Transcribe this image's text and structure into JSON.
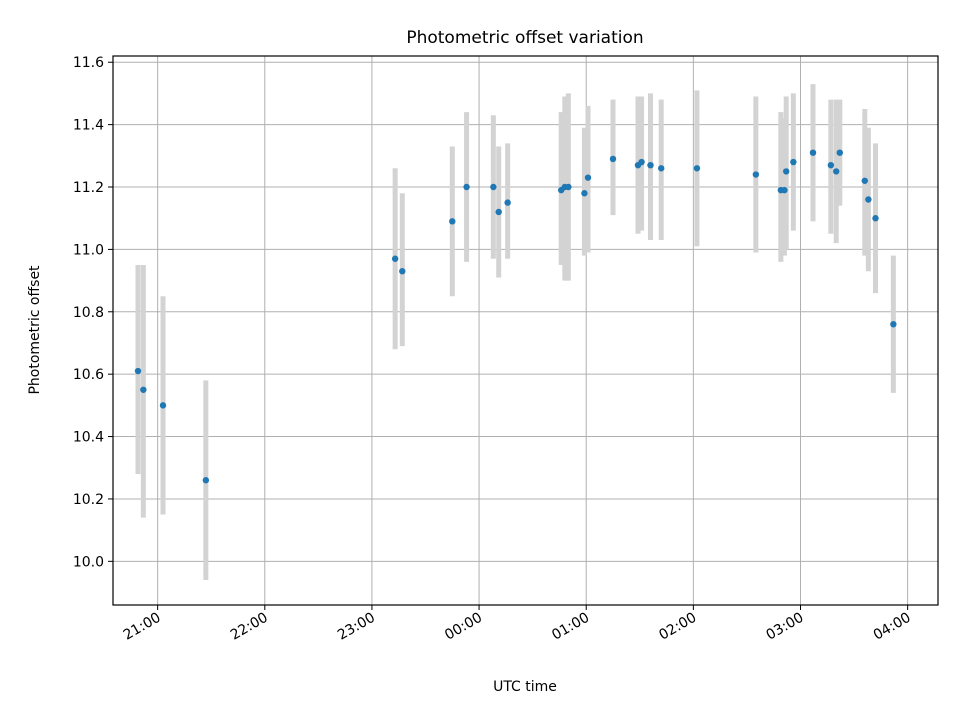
{
  "chart_data": {
    "type": "scatter",
    "title": "Photometric offset variation",
    "xlabel": "UTC time",
    "ylabel": "Photometric offset",
    "x_axis_kind": "time",
    "x_ticks": [
      "21:00",
      "22:00",
      "23:00",
      "00:00",
      "01:00",
      "02:00",
      "03:00",
      "04:00"
    ],
    "y_ticks": [
      "10.0",
      "10.2",
      "10.4",
      "10.6",
      "10.8",
      "11.0",
      "11.2",
      "11.4",
      "11.6"
    ],
    "xlim": [
      "20:35",
      "04:17"
    ],
    "ylim": [
      9.86,
      11.62
    ],
    "grid": true,
    "point_color": "#1f77b4",
    "errorbar_color": "#d3d3d3",
    "points": [
      {
        "x": "20:49",
        "y": 10.61,
        "ylo": 10.28,
        "yhi": 10.95
      },
      {
        "x": "20:52",
        "y": 10.55,
        "ylo": 10.14,
        "yhi": 10.95
      },
      {
        "x": "21:03",
        "y": 10.5,
        "ylo": 10.15,
        "yhi": 10.85
      },
      {
        "x": "21:27",
        "y": 10.26,
        "ylo": 9.94,
        "yhi": 10.58
      },
      {
        "x": "23:13",
        "y": 10.97,
        "ylo": 10.68,
        "yhi": 11.26
      },
      {
        "x": "23:17",
        "y": 10.93,
        "ylo": 10.69,
        "yhi": 11.18
      },
      {
        "x": "23:45",
        "y": 11.09,
        "ylo": 10.85,
        "yhi": 11.33
      },
      {
        "x": "23:53",
        "y": 11.2,
        "ylo": 10.96,
        "yhi": 11.44
      },
      {
        "x": "00:08",
        "y": 11.2,
        "ylo": 10.97,
        "yhi": 11.43
      },
      {
        "x": "00:11",
        "y": 11.12,
        "ylo": 10.91,
        "yhi": 11.33
      },
      {
        "x": "00:16",
        "y": 11.15,
        "ylo": 10.97,
        "yhi": 11.34
      },
      {
        "x": "00:46",
        "y": 11.19,
        "ylo": 10.95,
        "yhi": 11.44
      },
      {
        "x": "00:48",
        "y": 11.2,
        "ylo": 10.9,
        "yhi": 11.49
      },
      {
        "x": "00:50",
        "y": 11.2,
        "ylo": 10.9,
        "yhi": 11.5
      },
      {
        "x": "00:59",
        "y": 11.18,
        "ylo": 10.98,
        "yhi": 11.39
      },
      {
        "x": "01:01",
        "y": 11.23,
        "ylo": 10.99,
        "yhi": 11.46
      },
      {
        "x": "01:15",
        "y": 11.29,
        "ylo": 11.11,
        "yhi": 11.48
      },
      {
        "x": "01:29",
        "y": 11.27,
        "ylo": 11.05,
        "yhi": 11.49
      },
      {
        "x": "01:31",
        "y": 11.28,
        "ylo": 11.06,
        "yhi": 11.49
      },
      {
        "x": "01:36",
        "y": 11.27,
        "ylo": 11.03,
        "yhi": 11.5
      },
      {
        "x": "01:42",
        "y": 11.26,
        "ylo": 11.03,
        "yhi": 11.48
      },
      {
        "x": "02:02",
        "y": 11.26,
        "ylo": 11.01,
        "yhi": 11.51
      },
      {
        "x": "02:35",
        "y": 11.24,
        "ylo": 10.99,
        "yhi": 11.49
      },
      {
        "x": "02:49",
        "y": 11.19,
        "ylo": 10.96,
        "yhi": 11.44
      },
      {
        "x": "02:51",
        "y": 11.19,
        "ylo": 10.98,
        "yhi": 11.42
      },
      {
        "x": "02:52",
        "y": 11.25,
        "ylo": 11.0,
        "yhi": 11.49
      },
      {
        "x": "02:56",
        "y": 11.28,
        "ylo": 11.06,
        "yhi": 11.5
      },
      {
        "x": "03:07",
        "y": 11.31,
        "ylo": 11.09,
        "yhi": 11.53
      },
      {
        "x": "03:17",
        "y": 11.27,
        "ylo": 11.05,
        "yhi": 11.48
      },
      {
        "x": "03:20",
        "y": 11.25,
        "ylo": 11.02,
        "yhi": 11.48
      },
      {
        "x": "03:22",
        "y": 11.31,
        "ylo": 11.14,
        "yhi": 11.48
      },
      {
        "x": "03:36",
        "y": 11.22,
        "ylo": 10.98,
        "yhi": 11.45
      },
      {
        "x": "03:38",
        "y": 11.16,
        "ylo": 10.93,
        "yhi": 11.39
      },
      {
        "x": "03:42",
        "y": 11.1,
        "ylo": 10.86,
        "yhi": 11.34
      },
      {
        "x": "03:52",
        "y": 10.76,
        "ylo": 10.54,
        "yhi": 10.98
      }
    ]
  }
}
